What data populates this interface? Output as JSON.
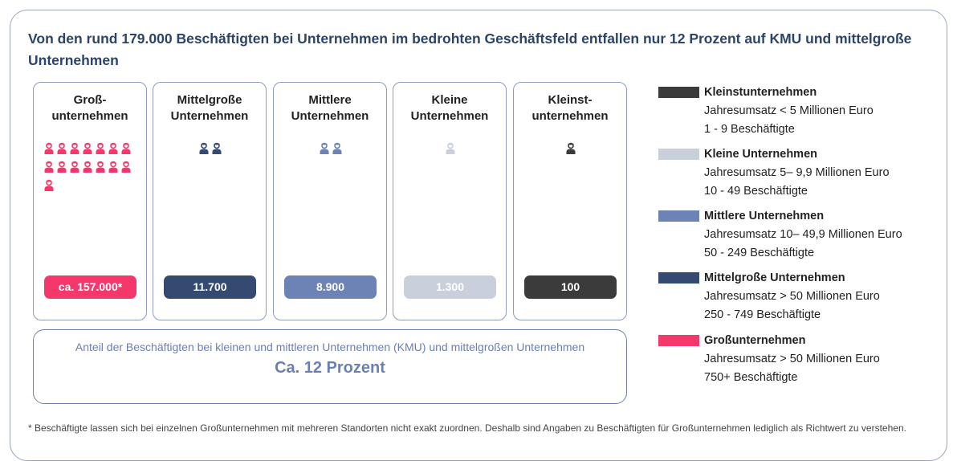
{
  "title": "Von den rund 179.000 Beschäftigten bei Unternehmen im bedrohten Geschäftsfeld entfallen nur  12 Prozent auf KMU und mittelgroße Unternehmen",
  "cards": [
    {
      "label": [
        "Groß-",
        "unternehmen"
      ],
      "value": "ca. 157.000*",
      "color": "#f5386c",
      "icons": 15
    },
    {
      "label": [
        "Mittelgroße",
        "Unternehmen"
      ],
      "value": "11.700",
      "color": "#344a70",
      "icons": 2
    },
    {
      "label": [
        "Mittlere",
        "Unternehmen"
      ],
      "value": "8.900",
      "color": "#6d82b5",
      "icons": 2
    },
    {
      "label": [
        "Kleine",
        "Unternehmen"
      ],
      "value": "1.300",
      "color": "#c9d0dc",
      "icons": 1
    },
    {
      "label": [
        "Kleinst-",
        "unternehmen"
      ],
      "value": "100",
      "color": "#3b3b3b",
      "icons": 1
    }
  ],
  "summary": {
    "text": "Anteil der Beschäftigten bei kleinen und mittleren Unternehmen (KMU) und mittelgroßen Unternehmen",
    "highlight": "Ca. 12 Prozent"
  },
  "legend": [
    {
      "name": "Kleinstunternehmen",
      "color": "#3b3b3b",
      "lines": [
        "Jahresumsatz < 5 Millionen Euro",
        "1 - 9 Beschäftigte"
      ]
    },
    {
      "name": "Kleine Unternehmen",
      "color": "#c9d0dc",
      "lines": [
        "Jahresumsatz 5– 9,9 Millionen Euro",
        "10 - 49 Beschäftigte"
      ]
    },
    {
      "name": "Mittlere Unternehmen",
      "color": "#6d82b5",
      "lines": [
        "Jahresumsatz 10– 49,9 Millionen Euro",
        "50 - 249 Beschäftigte"
      ]
    },
    {
      "name": "Mittelgroße Unternehmen",
      "color": "#344a70",
      "lines": [
        "Jahresumsatz > 50 Millionen Euro",
        "250 - 749 Beschäftigte"
      ]
    },
    {
      "name": "Großunternehmen",
      "color": "#f5386c",
      "lines": [
        "Jahresumsatz > 50 Millionen Euro",
        "750+ Beschäftigte"
      ]
    }
  ],
  "footnote": "* Beschäftigte lassen sich bei einzelnen Großunternehmen mit mehreren Standorten nicht exakt zuordnen. Deshalb sind Angaben zu Beschäftigten für Großunternehmen lediglich als Richtwert zu verstehen."
}
